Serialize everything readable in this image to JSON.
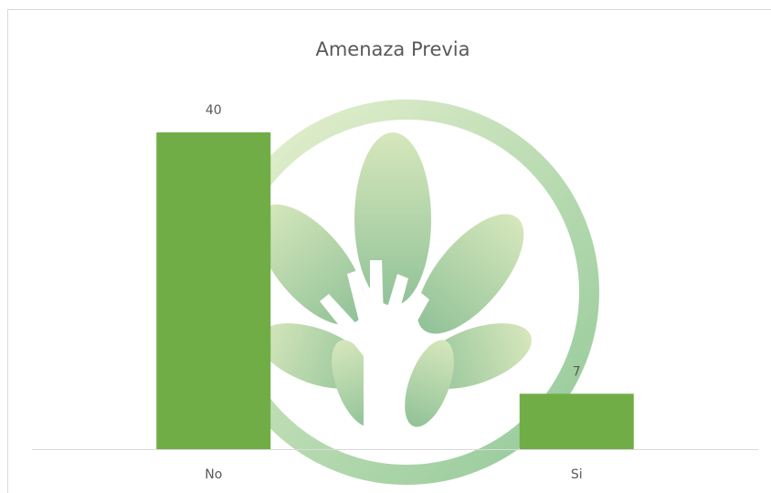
{
  "chart_data": {
    "type": "bar",
    "title": "Amenaza Previa",
    "categories": [
      "No",
      "Si"
    ],
    "values": [
      40,
      7
    ],
    "color": "#70ad47"
  }
}
